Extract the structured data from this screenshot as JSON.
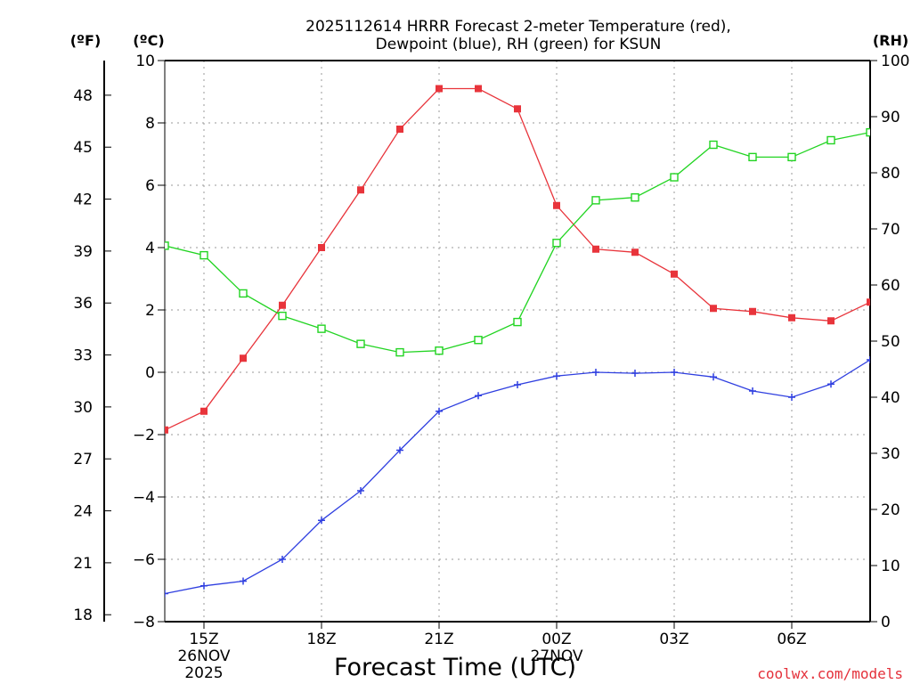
{
  "colors": {
    "temperature": "#e8343b",
    "dewpoint": "#2f3fe0",
    "rh": "#22d422",
    "grid": "#9a9a9a",
    "credit": "#e4303a"
  },
  "chart_data": {
    "type": "line",
    "title_line1": "2025112614 HRRR Forecast 2-meter Temperature (red),",
    "title_line2": "Dewpoint (blue), RH (green) for KSUN",
    "xlabel": "Forecast Time (UTC)",
    "credit": "coolwx.com/models",
    "left_outer_axis": {
      "unit": "(ºF)",
      "ticks": [
        "18",
        "21",
        "24",
        "27",
        "30",
        "33",
        "36",
        "39",
        "42",
        "45",
        "48"
      ],
      "values": [
        18,
        21,
        24,
        27,
        30,
        33,
        36,
        39,
        42,
        45,
        48
      ]
    },
    "left_axis": {
      "unit": "(ºC)",
      "ylim": [
        -8,
        10
      ],
      "ticks": [
        "−8",
        "−6",
        "−4",
        "−2",
        "0",
        "2",
        "4",
        "6",
        "8",
        "10"
      ],
      "values": [
        -8,
        -6,
        -4,
        -2,
        0,
        2,
        4,
        6,
        8,
        10
      ]
    },
    "right_axis": {
      "unit": "(RH)",
      "ylim": [
        0,
        100
      ],
      "ticks": [
        "0",
        "10",
        "20",
        "30",
        "40",
        "50",
        "60",
        "70",
        "80",
        "90",
        "100"
      ],
      "values": [
        0,
        10,
        20,
        30,
        40,
        50,
        60,
        70,
        80,
        90,
        100
      ]
    },
    "x_hours": [
      14,
      15,
      16,
      17,
      18,
      19,
      20,
      21,
      22,
      23,
      24,
      25,
      26,
      27,
      28,
      29,
      30,
      31,
      32
    ],
    "xlim": [
      14,
      32
    ],
    "x_ticks": [
      {
        "hour": 15,
        "line1": "15Z",
        "line2": "26NOV",
        "line3": "2025"
      },
      {
        "hour": 18,
        "line1": "18Z",
        "line2": "",
        "line3": ""
      },
      {
        "hour": 21,
        "line1": "21Z",
        "line2": "",
        "line3": ""
      },
      {
        "hour": 24,
        "line1": "00Z",
        "line2": "27NOV",
        "line3": ""
      },
      {
        "hour": 27,
        "line1": "03Z",
        "line2": "",
        "line3": ""
      },
      {
        "hour": 30,
        "line1": "06Z",
        "line2": "",
        "line3": ""
      }
    ],
    "series": [
      {
        "name": "Temperature",
        "axis": "celsius",
        "marker": "filled-square",
        "values": [
          -1.85,
          -1.25,
          0.45,
          2.15,
          4.0,
          5.85,
          7.8,
          9.1,
          9.1,
          8.45,
          5.35,
          3.95,
          3.85,
          3.15,
          2.05,
          1.95,
          1.75,
          1.65,
          2.25
        ]
      },
      {
        "name": "Dewpoint",
        "axis": "celsius",
        "marker": "plus",
        "values": [
          -7.1,
          -6.85,
          -6.7,
          -6.0,
          -4.75,
          -3.8,
          -2.5,
          -1.25,
          -0.75,
          -0.4,
          -0.12,
          0.0,
          -0.03,
          0.0,
          -0.15,
          -0.6,
          -0.8,
          -0.38,
          0.4
        ]
      },
      {
        "name": "RH",
        "axis": "rh",
        "marker": "open-square",
        "values": [
          67.0,
          65.3,
          58.5,
          54.5,
          52.2,
          49.5,
          48.0,
          48.3,
          50.2,
          53.4,
          67.5,
          75.1,
          75.6,
          79.2,
          85.0,
          82.8,
          82.8,
          85.8,
          87.2
        ]
      }
    ]
  }
}
